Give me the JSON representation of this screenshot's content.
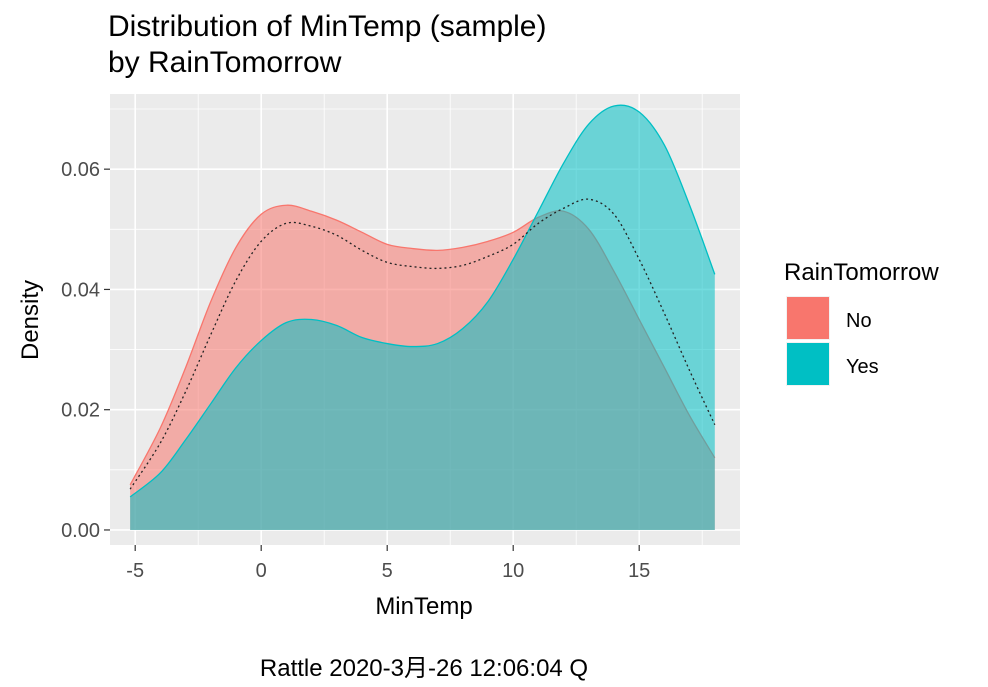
{
  "chart_data": {
    "type": "area",
    "title_lines": [
      "Distribution of MinTemp (sample)",
      "by RainTomorrow"
    ],
    "xlabel": "MinTemp",
    "ylabel": "Density",
    "xlim": [
      -6,
      19
    ],
    "ylim": [
      -0.0025,
      0.0725
    ],
    "x_ticks": [
      -5,
      0,
      5,
      10,
      15
    ],
    "y_ticks": [
      0.0,
      0.02,
      0.04,
      0.06
    ],
    "y_tick_labels": [
      "0.00",
      "0.02",
      "0.04",
      "0.06"
    ],
    "grid": true,
    "legend": {
      "title": "RainTomorrow",
      "position": "right"
    },
    "caption": "Rattle 2020-3月-26 12:06:04 Q",
    "x": [
      -5.2,
      -4,
      -3,
      -2,
      -1,
      0,
      1,
      2,
      3,
      4,
      5,
      6,
      7,
      8,
      9,
      10,
      11,
      12,
      13,
      14,
      15,
      16,
      17,
      18
    ],
    "series": [
      {
        "name": "No",
        "color": "#F8766D",
        "values": [
          0.0075,
          0.017,
          0.027,
          0.038,
          0.047,
          0.0525,
          0.054,
          0.053,
          0.0515,
          0.0495,
          0.0475,
          0.0468,
          0.0465,
          0.047,
          0.048,
          0.0495,
          0.052,
          0.053,
          0.05,
          0.043,
          0.035,
          0.027,
          0.019,
          0.012
        ]
      },
      {
        "name": "Yes",
        "color": "#00BFC4",
        "values": [
          0.0055,
          0.0095,
          0.015,
          0.021,
          0.027,
          0.0315,
          0.0345,
          0.035,
          0.034,
          0.032,
          0.031,
          0.0305,
          0.031,
          0.0335,
          0.038,
          0.045,
          0.053,
          0.061,
          0.0675,
          0.0705,
          0.0695,
          0.064,
          0.054,
          0.0425
        ]
      }
    ],
    "overall": {
      "style": "dotted",
      "values": [
        0.0068,
        0.0145,
        0.023,
        0.0325,
        0.0415,
        0.048,
        0.051,
        0.0505,
        0.049,
        0.0465,
        0.0445,
        0.0438,
        0.0435,
        0.044,
        0.0455,
        0.0475,
        0.051,
        0.0535,
        0.055,
        0.0525,
        0.045,
        0.036,
        0.0265,
        0.0175
      ]
    }
  }
}
